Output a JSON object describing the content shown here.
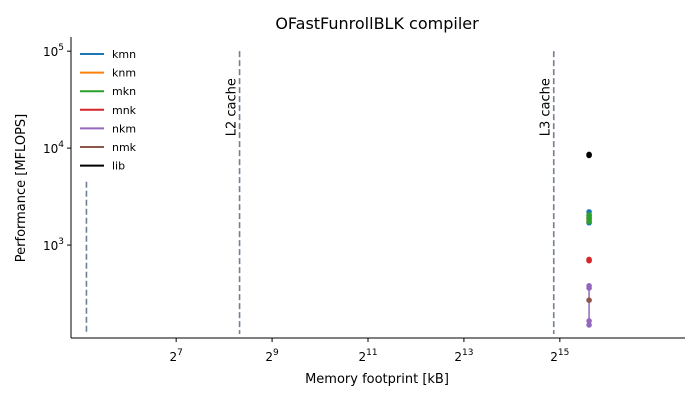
{
  "chart_data": {
    "type": "scatter",
    "title": "OFastFunrollBLK compiler",
    "xlabel": "Memory footprint [kB]",
    "ylabel": "Performance [MFLOPS]",
    "x_scale": "log2",
    "y_scale": "log10",
    "xlim": [
      28,
      200000
    ],
    "ylim": [
      110,
      140000
    ],
    "x_ticks": [
      {
        "value": 128,
        "base": "2",
        "exp": "7"
      },
      {
        "value": 512,
        "base": "2",
        "exp": "9"
      },
      {
        "value": 2048,
        "base": "2",
        "exp": "11"
      },
      {
        "value": 8192,
        "base": "2",
        "exp": "13"
      },
      {
        "value": 32768,
        "base": "2",
        "exp": "15"
      }
    ],
    "y_ticks": [
      {
        "value": 1000,
        "base": "10",
        "exp": "3"
      },
      {
        "value": 10000,
        "base": "10",
        "exp": "4"
      },
      {
        "value": 100000,
        "base": "10",
        "exp": "5"
      }
    ],
    "cache_lines": [
      {
        "label": "",
        "x": 35,
        "y_top": 4500
      },
      {
        "label": "L2 cache",
        "x": 320,
        "y_top": 100000
      },
      {
        "label": "L3 cache",
        "x": 30000,
        "y_top": 100000
      }
    ],
    "legend_position": "upper-left",
    "series": [
      {
        "name": "kmn",
        "color": "#1f77b4",
        "x": [
          50000,
          50000,
          50000,
          50000
        ],
        "y": [
          2200,
          2000,
          1850,
          1700
        ]
      },
      {
        "name": "knm",
        "color": "#ff7f0e",
        "x": [
          50000,
          50000
        ],
        "y": [
          1900,
          1800
        ]
      },
      {
        "name": "mkn",
        "color": "#2ca02c",
        "x": [
          50000,
          50000,
          50000
        ],
        "y": [
          2050,
          1900,
          1750
        ]
      },
      {
        "name": "mnk",
        "color": "#d62728",
        "x": [
          50000,
          50000
        ],
        "y": [
          710,
          690
        ]
      },
      {
        "name": "nkm",
        "color": "#9467bd",
        "x": [
          50000,
          50000,
          50000,
          50000
        ],
        "y": [
          380,
          360,
          165,
          150
        ]
      },
      {
        "name": "nmk",
        "color": "#8c564b",
        "x": [
          50000
        ],
        "y": [
          270
        ]
      },
      {
        "name": "lib",
        "color": "#000000",
        "x": [
          50000,
          50000
        ],
        "y": [
          8600,
          8400
        ]
      }
    ]
  }
}
